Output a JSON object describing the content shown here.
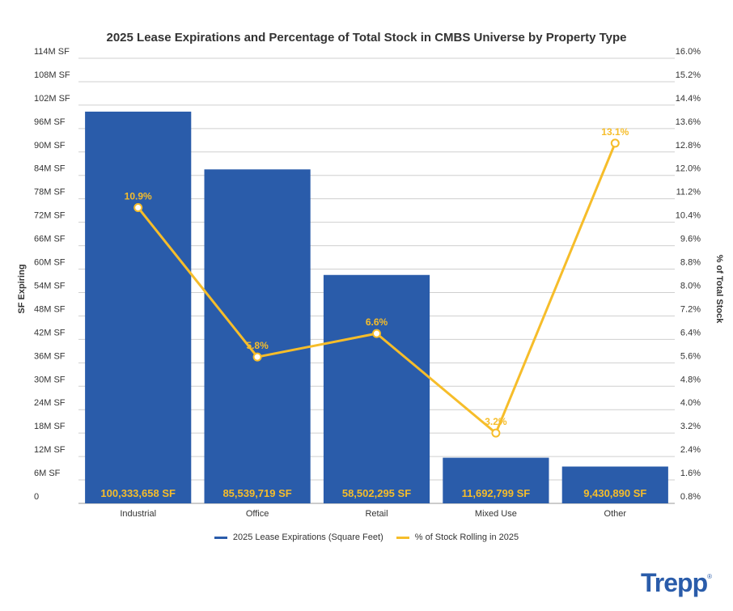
{
  "chart_data": {
    "type": "bar",
    "title": "2025 Lease Expirations and Percentage of Total Stock in CMBS Universe by Property Type",
    "categories": [
      "Industrial",
      "Office",
      "Retail",
      "Mixed Use",
      "Other"
    ],
    "series": [
      {
        "name": "2025 Lease Expirations (Square Feet)",
        "kind": "bar",
        "axis": "left",
        "color": "#2a5caa",
        "values": [
          100333658,
          85539719,
          58502295,
          11692799,
          9430890
        ],
        "labels": [
          "100,333,658 SF",
          "85,539,719 SF",
          "58,502,295 SF",
          "11,692,799 SF",
          "9,430,890 SF"
        ]
      },
      {
        "name": "% of Stock Rolling in 2025",
        "kind": "line",
        "axis": "right",
        "color": "#f6bd2a",
        "values": [
          10.9,
          5.8,
          6.6,
          3.2,
          13.1
        ],
        "labels": [
          "10.9%",
          "5.8%",
          "6.6%",
          "3.2%",
          "13.1%"
        ]
      }
    ],
    "ylabel_left": "SF Expiring",
    "ylabel_right": "% of Total Stock",
    "ylim_left": [
      0,
      114000000
    ],
    "ylim_right": [
      0.8,
      16.0
    ],
    "yticks_left": [
      "0",
      "6M SF",
      "12M SF",
      "18M SF",
      "24M SF",
      "30M SF",
      "36M SF",
      "42M SF",
      "48M SF",
      "54M SF",
      "60M SF",
      "66M SF",
      "72M SF",
      "78M SF",
      "84M SF",
      "90M SF",
      "96M SF",
      "102M SF",
      "108M SF",
      "114M SF"
    ],
    "yticks_right": [
      "0.8%",
      "1.6%",
      "2.4%",
      "3.2%",
      "4.0%",
      "4.8%",
      "5.6%",
      "6.4%",
      "7.2%",
      "8.0%",
      "8.8%",
      "9.6%",
      "10.4%",
      "11.2%",
      "12.0%",
      "12.8%",
      "13.6%",
      "14.4%",
      "15.2%",
      "16.0%"
    ],
    "grid": true,
    "legend_position": "bottom"
  },
  "brand": {
    "name": "Trepp",
    "mark": "®",
    "logo_icon": "trepp-logo-icon"
  }
}
